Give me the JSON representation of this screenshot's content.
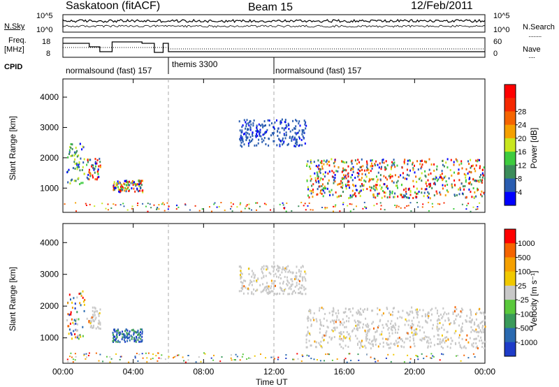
{
  "header": {
    "station": "Saskatoon (fitACF)",
    "beam": "Beam 15",
    "date": "12/Feb/2011"
  },
  "top_panels": {
    "sky_label": "N.Sky",
    "sky_ticks": [
      "10^5",
      "10^0"
    ],
    "search_label": "N.Search",
    "search_ticks": [
      "10^5",
      "10^0"
    ],
    "freq_label_1": "Freq.",
    "freq_label_2": "[MHz]",
    "freq_ticks": [
      "18",
      "8"
    ],
    "nave_label": "Nave",
    "nave_ticks": [
      "60",
      "0"
    ],
    "cpid_label": "CPID",
    "cpid_segments": [
      "normalsound (fast) 157",
      "themis 3300",
      "normalsound (fast) 157"
    ]
  },
  "chart_data": [
    {
      "type": "heatmap",
      "title": "",
      "ylabel": "Slant Range [km]",
      "xlabel": "",
      "yticks": [
        "1000",
        "2000",
        "3000",
        "4000"
      ],
      "ylim": [
        200,
        4600
      ],
      "xlim": [
        0,
        24
      ],
      "colorbar": {
        "label": "Power [dB]",
        "ticks": [
          "4",
          "8",
          "12",
          "16",
          "20",
          "24",
          "28"
        ],
        "colors": [
          "#0000ff",
          "#2a5db0",
          "#3c8c5a",
          "#3ecb3e",
          "#c8e61e",
          "#f5a000",
          "#f56400",
          "#f52800",
          "#ff0000"
        ]
      },
      "regions": [
        {
          "t": [
            0.2,
            1.2
          ],
          "r": [
            1100,
            2500
          ],
          "level": "mid"
        },
        {
          "t": [
            1.3,
            2.1
          ],
          "r": [
            1300,
            2000
          ],
          "level": "high"
        },
        {
          "t": [
            2.8,
            4.5
          ],
          "r": [
            900,
            1300
          ],
          "level": "high"
        },
        {
          "t": [
            10.0,
            13.8
          ],
          "r": [
            2400,
            3300
          ],
          "level": "low"
        },
        {
          "t": [
            13.8,
            24.0
          ],
          "r": [
            700,
            2000
          ],
          "level": "high"
        }
      ]
    },
    {
      "type": "heatmap",
      "title": "",
      "ylabel": "Slant Range [km]",
      "xlabel": "Time UT",
      "xticks": [
        "00:00",
        "04:00",
        "08:00",
        "12:00",
        "16:00",
        "20:00",
        "00:00"
      ],
      "yticks": [
        "1000",
        "2000",
        "3000",
        "4000"
      ],
      "ylim": [
        200,
        4600
      ],
      "xlim": [
        0,
        24
      ],
      "colorbar": {
        "label": "Velocity [m s⁻¹]",
        "ticks": [
          "1000",
          "500",
          "100",
          "25",
          "-25",
          "-100",
          "-500",
          "-1000"
        ],
        "colors": [
          "#1e3cc8",
          "#2a6ab0",
          "#3a9a5a",
          "#5ac83c",
          "#c8c8c8",
          "#f0c800",
          "#f5a000",
          "#f56400",
          "#ff0000"
        ]
      },
      "regions": [
        {
          "t": [
            0.2,
            1.2
          ],
          "r": [
            1000,
            2500
          ],
          "level": "mixed"
        },
        {
          "t": [
            1.3,
            2.1
          ],
          "r": [
            1300,
            2000
          ],
          "level": "gray"
        },
        {
          "t": [
            2.8,
            4.5
          ],
          "r": [
            900,
            1300
          ],
          "level": "blue"
        },
        {
          "t": [
            10.0,
            13.8
          ],
          "r": [
            2400,
            3300
          ],
          "level": "gray"
        },
        {
          "t": [
            13.8,
            24.0
          ],
          "r": [
            700,
            2000
          ],
          "level": "gray"
        }
      ]
    }
  ]
}
